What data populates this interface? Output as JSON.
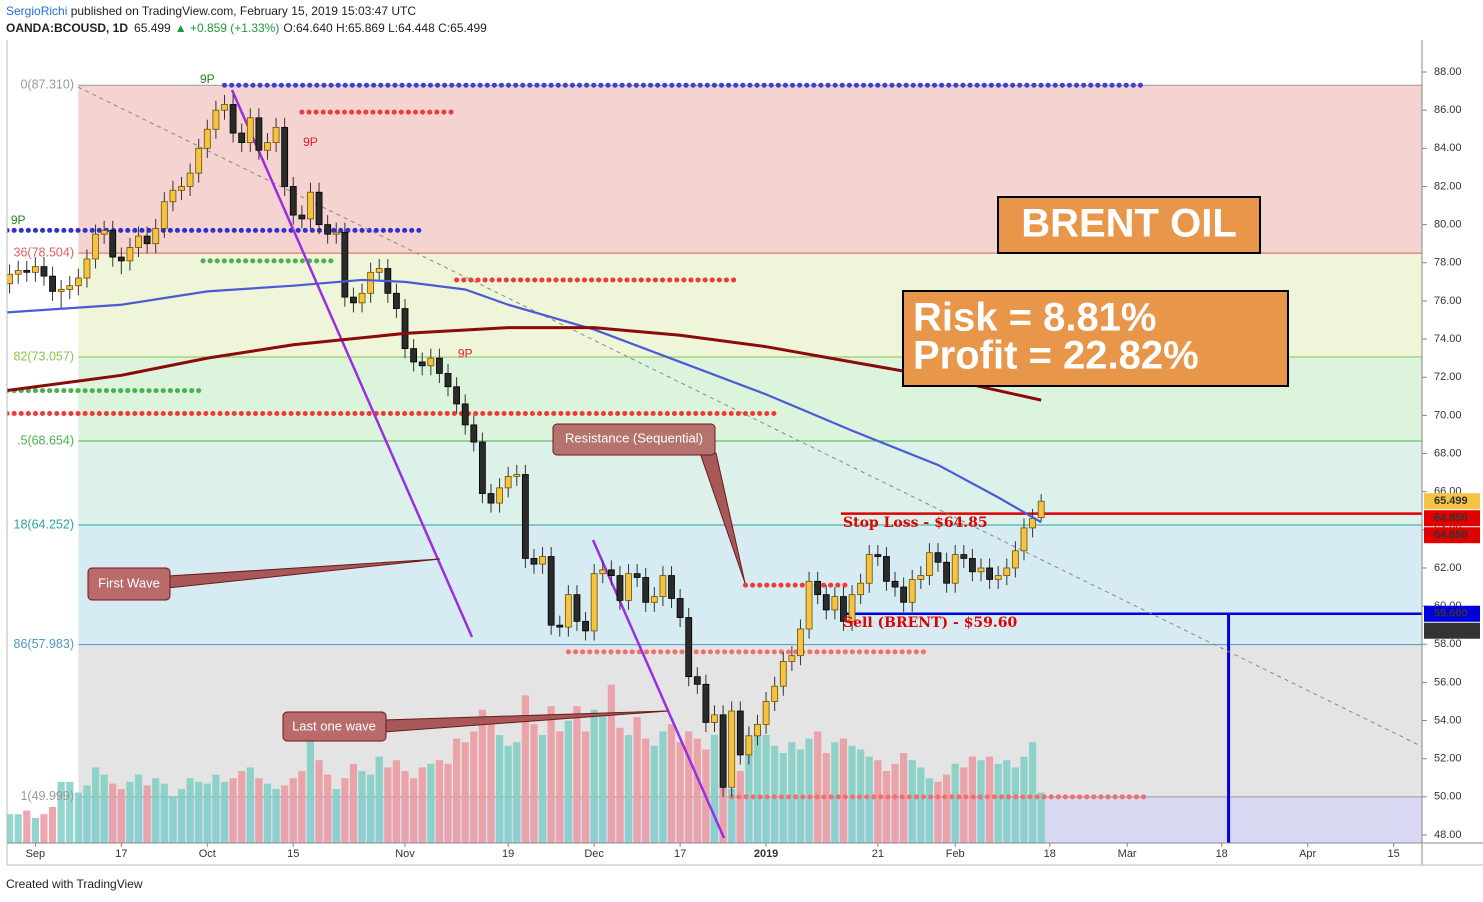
{
  "header": {
    "author": "SergioRichi",
    "published": " published on TradingView.com, February 15, 2019 15:03:47 UTC",
    "symbol": "OANDA:BCOUSD, 1D",
    "last": "65.499",
    "change": "▲ +0.859 (+1.33%)",
    "ohlc": "O:64.640 H:65.869 L:64.448 C:65.499"
  },
  "chart_data": {
    "type": "candlestick",
    "x": [
      -3,
      -2,
      -1,
      0,
      1,
      2,
      3,
      4,
      5,
      6,
      7,
      8,
      9,
      10,
      11,
      12,
      13,
      14,
      15,
      16,
      17,
      18,
      19,
      20,
      21,
      22,
      23,
      24,
      25,
      26,
      27,
      28,
      29,
      30,
      31,
      32,
      33,
      34,
      35,
      36,
      37,
      38,
      39,
      40,
      41,
      42,
      43,
      44,
      45,
      46,
      47,
      48,
      49,
      50,
      51,
      52,
      53,
      54,
      55,
      56,
      57,
      58,
      59,
      60,
      61,
      62,
      63,
      64,
      65,
      66,
      67,
      68,
      69,
      70,
      71,
      72,
      73,
      74,
      75,
      76,
      77,
      78,
      79,
      80,
      81,
      82,
      83,
      84,
      85,
      86,
      87,
      88,
      89,
      90,
      91,
      92,
      93,
      94,
      95,
      96,
      97,
      98,
      99,
      100,
      101,
      102,
      103,
      104,
      105,
      106,
      107,
      108,
      109,
      110,
      111,
      112,
      113,
      114,
      115,
      116,
      117
    ],
    "open": [
      76.9,
      77.4,
      77.6,
      77.5,
      77.8,
      77.3,
      76.5,
      76.6,
      76.8,
      77.2,
      78.2,
      79.5,
      79.7,
      78.3,
      78.1,
      78.8,
      79.4,
      79.0,
      79.8,
      81.2,
      81.8,
      82.0,
      82.7,
      84.0,
      85.0,
      86.0,
      86.3,
      84.8,
      84.3,
      85.6,
      83.9,
      84.3,
      85.1,
      82.0,
      80.5,
      80.3,
      81.7,
      80.0,
      79.5,
      79.6,
      76.2,
      75.9,
      76.4,
      77.5,
      77.7,
      76.4,
      75.6,
      73.5,
      72.8,
      72.6,
      73.0,
      72.2,
      71.5,
      70.6,
      69.5,
      68.6,
      65.9,
      65.4,
      66.2,
      66.8,
      66.9,
      62.5,
      62.2,
      62.6,
      59.0,
      58.9,
      60.6,
      59.2,
      58.7,
      61.7,
      61.9,
      61.6,
      60.3,
      61.7,
      61.5,
      60.2,
      60.5,
      61.6,
      60.4,
      59.4,
      56.3,
      55.9,
      53.9,
      54.3,
      50.5,
      54.5,
      52.2,
      53.2,
      53.8,
      55.0,
      55.8,
      57.1,
      57.4,
      58.8,
      61.3,
      60.6,
      59.8,
      60.5,
      59.2,
      60.6,
      61.2,
      62.7,
      62.6,
      61.3,
      61.0,
      60.2,
      61.4,
      61.6,
      62.8,
      62.3,
      61.2,
      62.7,
      62.5,
      61.8,
      62.0,
      61.4,
      61.6,
      62.0,
      62.9,
      64.1,
      64.64
    ],
    "high": [
      77.9,
      78.1,
      78.1,
      78.3,
      78.3,
      77.8,
      77.1,
      77.3,
      77.7,
      78.7,
      80.0,
      80.2,
      80.2,
      78.8,
      79.3,
      79.9,
      79.9,
      80.3,
      81.7,
      82.3,
      82.5,
      83.2,
      84.5,
      85.5,
      86.5,
      86.8,
      86.8,
      85.3,
      86.1,
      86.1,
      84.8,
      85.6,
      85.6,
      82.5,
      81.0,
      82.2,
      82.2,
      80.5,
      80.1,
      80.1,
      76.7,
      76.9,
      78.0,
      78.2,
      78.2,
      76.9,
      76.1,
      74.0,
      73.3,
      73.5,
      73.5,
      72.7,
      72.0,
      71.1,
      70.0,
      69.1,
      66.4,
      66.7,
      67.3,
      67.4,
      67.4,
      63.0,
      63.1,
      63.1,
      59.5,
      61.1,
      61.1,
      59.7,
      62.2,
      62.4,
      62.4,
      62.1,
      62.2,
      62.2,
      62.0,
      61.0,
      62.1,
      62.1,
      60.9,
      59.9,
      56.8,
      56.4,
      54.8,
      54.8,
      55.0,
      55.0,
      53.7,
      54.3,
      55.5,
      56.3,
      57.6,
      57.9,
      59.3,
      61.8,
      61.8,
      61.1,
      61.0,
      61.0,
      61.1,
      61.7,
      63.2,
      63.2,
      63.1,
      61.8,
      61.5,
      61.9,
      62.1,
      63.3,
      63.3,
      62.8,
      63.2,
      63.2,
      63.0,
      62.5,
      62.5,
      62.1,
      62.5,
      63.4,
      64.6,
      65.1,
      65.869
    ],
    "low": [
      76.4,
      76.9,
      77.0,
      77.0,
      76.8,
      76.0,
      75.6,
      76.1,
      76.3,
      76.7,
      77.7,
      79.0,
      77.8,
      77.4,
      77.6,
      78.3,
      78.5,
      78.5,
      79.3,
      80.7,
      81.3,
      81.5,
      82.2,
      83.5,
      84.5,
      85.5,
      84.3,
      83.8,
      83.8,
      83.4,
      83.4,
      83.8,
      81.5,
      80.0,
      79.8,
      79.8,
      79.5,
      79.0,
      79.0,
      75.7,
      75.4,
      75.4,
      75.9,
      77.0,
      75.9,
      75.1,
      73.0,
      72.3,
      72.1,
      72.1,
      71.7,
      71.0,
      70.1,
      69.0,
      68.1,
      65.4,
      64.9,
      64.9,
      65.7,
      66.3,
      62.0,
      61.7,
      61.7,
      58.5,
      58.4,
      58.4,
      58.7,
      58.2,
      58.2,
      61.2,
      61.1,
      59.8,
      59.8,
      61.0,
      59.7,
      59.7,
      60.0,
      59.9,
      58.9,
      55.8,
      55.4,
      53.4,
      53.4,
      50.0,
      50.0,
      51.7,
      51.7,
      52.7,
      53.3,
      54.5,
      55.3,
      56.6,
      56.9,
      58.3,
      60.1,
      59.3,
      59.3,
      58.7,
      58.7,
      60.1,
      60.7,
      62.1,
      60.8,
      60.5,
      59.7,
      59.7,
      60.9,
      61.1,
      61.8,
      60.7,
      60.7,
      62.0,
      61.3,
      61.3,
      60.9,
      60.9,
      61.1,
      61.5,
      62.4,
      63.6,
      64.448
    ],
    "close": [
      77.4,
      77.6,
      77.5,
      77.8,
      77.3,
      76.5,
      76.6,
      76.8,
      77.2,
      78.2,
      79.5,
      79.7,
      78.3,
      78.1,
      78.8,
      79.4,
      79.0,
      79.8,
      81.2,
      81.8,
      82.0,
      82.7,
      84.0,
      85.0,
      86.0,
      86.3,
      84.8,
      84.3,
      85.6,
      83.9,
      84.3,
      85.1,
      82.0,
      80.5,
      80.3,
      81.7,
      80.0,
      79.5,
      79.6,
      76.2,
      75.9,
      76.4,
      77.5,
      77.7,
      76.4,
      75.6,
      73.5,
      72.8,
      72.6,
      73.0,
      72.2,
      71.5,
      70.6,
      69.5,
      68.6,
      65.9,
      65.4,
      66.2,
      66.8,
      66.9,
      62.5,
      62.2,
      62.6,
      59.0,
      58.9,
      60.6,
      59.2,
      58.7,
      61.7,
      61.9,
      61.6,
      60.3,
      61.7,
      61.5,
      60.2,
      60.5,
      61.6,
      60.4,
      59.4,
      56.3,
      55.9,
      53.9,
      54.3,
      50.5,
      54.5,
      52.2,
      53.2,
      53.8,
      55.0,
      55.8,
      57.1,
      57.4,
      58.8,
      61.3,
      60.6,
      59.8,
      60.5,
      59.2,
      60.6,
      61.2,
      62.7,
      62.6,
      61.3,
      61.0,
      60.2,
      61.4,
      61.6,
      62.8,
      62.3,
      61.2,
      62.7,
      62.5,
      61.8,
      62.0,
      61.4,
      61.6,
      62.0,
      62.9,
      64.1,
      64.6,
      65.499
    ],
    "volume": [
      16,
      16,
      18,
      14,
      16,
      20,
      34,
      34,
      28,
      32,
      42,
      38,
      33,
      30,
      34,
      38,
      32,
      36,
      33,
      26,
      30,
      36,
      34,
      33,
      38,
      34,
      36,
      40,
      42,
      36,
      33,
      30,
      32,
      36,
      40,
      58,
      46,
      38,
      30,
      36,
      44,
      40,
      38,
      48,
      42,
      46,
      40,
      36,
      42,
      44,
      46,
      44,
      58,
      56,
      62,
      74,
      70,
      60,
      54,
      56,
      82,
      66,
      60,
      76,
      62,
      68,
      76,
      62,
      74,
      72,
      88,
      64,
      60,
      70,
      58,
      54,
      62,
      66,
      56,
      62,
      58,
      52,
      60,
      64,
      30,
      40,
      58,
      64,
      60,
      54,
      50,
      56,
      52,
      58,
      62,
      50,
      56,
      58,
      54,
      52,
      48,
      46,
      40,
      44,
      50,
      46,
      42,
      36,
      34,
      38,
      44,
      42,
      48,
      46,
      48,
      44,
      46,
      42,
      48,
      56,
      28
    ],
    "volume_ylim": [
      0,
      100
    ],
    "up_color": "#f5c242",
    "down_color": "#2b2b2b",
    "volume_up_color": "#7fcfc5",
    "volume_down_color": "#ec9a9f",
    "xlim": [
      -3.3,
      161.3
    ],
    "xticks": [
      {
        "value": 0,
        "label": "Sep"
      },
      {
        "value": 10,
        "label": "17"
      },
      {
        "value": 20,
        "label": "Oct"
      },
      {
        "value": 30,
        "label": "15"
      },
      {
        "value": 43,
        "label": "Nov"
      },
      {
        "value": 55,
        "label": "19"
      },
      {
        "value": 65,
        "label": "Dec"
      },
      {
        "value": 75,
        "label": "17"
      },
      {
        "value": 85,
        "label": "2019"
      },
      {
        "value": 98,
        "label": "21"
      },
      {
        "value": 107,
        "label": "Feb"
      },
      {
        "value": 118,
        "label": "18"
      },
      {
        "value": 127,
        "label": "Mar"
      },
      {
        "value": 138,
        "label": "18"
      },
      {
        "value": 148,
        "label": "Apr"
      },
      {
        "value": 158,
        "label": "15"
      }
    ],
    "ylim": [
      47.58,
      89.68
    ],
    "yticks": [
      {
        "value": 48,
        "label": "48.00"
      },
      {
        "value": 50,
        "label": "50.00"
      },
      {
        "value": 52,
        "label": "52.00"
      },
      {
        "value": 54,
        "label": "54.00"
      },
      {
        "value": 56,
        "label": "56.00"
      },
      {
        "value": 58,
        "label": "58.00"
      },
      {
        "value": 60,
        "label": "60.00"
      },
      {
        "value": 62,
        "label": "62.00"
      },
      {
        "value": 64,
        "label": "64.00"
      },
      {
        "value": 66,
        "label": "66.00"
      },
      {
        "value": 68,
        "label": "68.00"
      },
      {
        "value": 70,
        "label": "70.00"
      },
      {
        "value": 72,
        "label": "72.00"
      },
      {
        "value": 74,
        "label": "74.00"
      },
      {
        "value": 76,
        "label": "76.00"
      },
      {
        "value": 78,
        "label": "78.00"
      },
      {
        "value": 80,
        "label": "80.00"
      },
      {
        "value": 82,
        "label": "82.00"
      },
      {
        "value": 84,
        "label": "84.00"
      },
      {
        "value": 86,
        "label": "86.00"
      },
      {
        "value": 88,
        "label": "88.00"
      }
    ],
    "moving_averages": [
      {
        "color": "#4a5bd6",
        "x": [
          -3.3,
          10,
          20,
          30,
          38,
          43,
          50,
          55,
          65,
          75,
          85,
          95,
          105,
          112,
          117
        ],
        "values": [
          75.4,
          75.8,
          76.5,
          76.8,
          77.1,
          77.0,
          76.6,
          75.8,
          74.5,
          72.8,
          71.1,
          69.2,
          67.4,
          65.7,
          64.4
        ]
      },
      {
        "color": "#8b0a0a",
        "x": [
          -3.3,
          10,
          20,
          30,
          43,
          55,
          65,
          75,
          85,
          95,
          105,
          112,
          117
        ],
        "values": [
          71.3,
          72.1,
          73.0,
          73.7,
          74.3,
          74.6,
          74.6,
          74.2,
          73.6,
          72.8,
          72.0,
          71.3,
          70.8
        ]
      }
    ],
    "fib_start_x": 5,
    "fib_levels": [
      {
        "value": 87.31,
        "label": "0(87.310)",
        "color": "#9a9a9a",
        "fill": "#f4d3d1"
      },
      {
        "value": 78.504,
        "label": "36(78.504)",
        "color": "#e06060",
        "fill": "#eef5d8"
      },
      {
        "value": 73.057,
        "label": "82(73.057)",
        "color": "#8fc24a",
        "fill": "#dcf3dc"
      },
      {
        "value": 68.654,
        "label": ".5(68.654)",
        "color": "#4cb04c",
        "fill": "#dbf1ea"
      },
      {
        "value": 64.252,
        "label": "18(64.252)",
        "color": "#2fa39b",
        "fill": "#d7ebf3"
      },
      {
        "value": 57.983,
        "label": "86(57.983)",
        "color": "#4f98c4",
        "fill": "#e4e4e4"
      },
      {
        "value": 49.999,
        "label": "1(49.999)",
        "color": "#9a9a9a",
        "fill": "#d9d8f3"
      }
    ],
    "dotted_levels": [
      {
        "value": 87.31,
        "x": [
          22,
          129
        ],
        "color": "#4040d0"
      },
      {
        "value": 79.7,
        "x": [
          -3.3,
          45
        ],
        "color": "#3030d0"
      },
      {
        "value": 85.9,
        "x": [
          31,
          49
        ],
        "color": "#f03a3a"
      },
      {
        "value": 78.1,
        "x": [
          19.5,
          35
        ],
        "color": "#4caf50"
      },
      {
        "value": 77.1,
        "x": [
          49,
          82
        ],
        "color": "#f03a3a"
      },
      {
        "value": 71.3,
        "x": [
          -3.3,
          19
        ],
        "color": "#4caf50"
      },
      {
        "value": 70.1,
        "x": [
          -3.3,
          86
        ],
        "color": "#f03a3a"
      },
      {
        "value": 61.1,
        "x": [
          82.6,
          94.5
        ],
        "color": "#f03a3a"
      },
      {
        "value": 57.6,
        "x": [
          62,
          104
        ],
        "color": "#f07070"
      },
      {
        "value": 50.0,
        "x": [
          81,
          129
        ],
        "color": "#f07070"
      }
    ],
    "levels": [
      {
        "value": 64.85,
        "x_start": 93.7,
        "color": "#e00000"
      },
      {
        "value": 59.6,
        "x_start": 94.2,
        "color": "#0000dd"
      }
    ],
    "target_x": 138.8,
    "price_tags": [
      {
        "value": 65.499,
        "label": "65.499",
        "color": "#f5c242",
        "text_color": "#000000"
      },
      {
        "value": 64.85,
        "label": "64.850",
        "color": "#e00000",
        "text_color": "#ffffff"
      },
      {
        "value": 64.85,
        "label": "64.850",
        "color": "#e00000",
        "text_color": "#ffffff"
      },
      {
        "value": 59.6,
        "label": "59.600",
        "color": "#0000dd",
        "text_color": "#ffffff"
      },
      {
        "value": 59.6,
        "label": "59.600",
        "color": "#333333",
        "text_color": "#ffffff"
      }
    ],
    "td_labels": [
      {
        "text": "9P",
        "x": 20,
        "color": "#1a8a1a"
      },
      {
        "text": "9P",
        "x": -2,
        "color": "#1a8a1a"
      },
      {
        "text": "9P",
        "x": 32,
        "color": "#e02020"
      },
      {
        "text": "9P",
        "x": 50,
        "color": "#e02020"
      }
    ],
    "title": "BRENT OIL",
    "risk": "Risk = 8.81%",
    "profit": "Profit = 22.82%",
    "stop_loss_label": "Stop Loss - $64.85",
    "sell_label": "Sell (BRENT) - $59.60",
    "callouts": [
      "First Wave",
      "Last one wave",
      "Resistance (Sequential)"
    ]
  },
  "footer": "Created with TradingView"
}
